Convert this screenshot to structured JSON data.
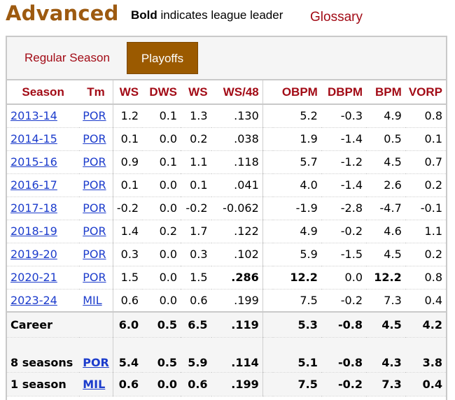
{
  "header": {
    "title": "Advanced",
    "note_bold": "Bold",
    "note_rest": " indicates league leader",
    "glossary": "Glossary"
  },
  "tabs": {
    "regular": "Regular Season",
    "playoffs": "Playoffs"
  },
  "columns": [
    "Season",
    "Tm",
    "WS",
    "DWS",
    "WS",
    "WS/48",
    "OBPM",
    "DBPM",
    "BPM",
    "VORP"
  ],
  "rows": [
    {
      "season": "2013-14",
      "tm": "POR",
      "c1": "1.2",
      "c2": "0.1",
      "c3": "1.3",
      "c4": ".130",
      "c5": "5.2",
      "c6": "-0.3",
      "c7": "4.9",
      "c8": "0.8"
    },
    {
      "season": "2014-15",
      "tm": "POR",
      "c1": "0.1",
      "c2": "0.0",
      "c3": "0.2",
      "c4": ".038",
      "c5": "1.9",
      "c6": "-1.4",
      "c7": "0.5",
      "c8": "0.1"
    },
    {
      "season": "2015-16",
      "tm": "POR",
      "c1": "0.9",
      "c2": "0.1",
      "c3": "1.1",
      "c4": ".118",
      "c5": "5.7",
      "c6": "-1.2",
      "c7": "4.5",
      "c8": "0.7"
    },
    {
      "season": "2016-17",
      "tm": "POR",
      "c1": "0.1",
      "c2": "0.0",
      "c3": "0.1",
      "c4": ".041",
      "c5": "4.0",
      "c6": "-1.4",
      "c7": "2.6",
      "c8": "0.2"
    },
    {
      "season": "2017-18",
      "tm": "POR",
      "c1": "-0.2",
      "c2": "0.0",
      "c3": "-0.2",
      "c4": "-0.062",
      "c5": "-1.9",
      "c6": "-2.8",
      "c7": "-4.7",
      "c8": "-0.1"
    },
    {
      "season": "2018-19",
      "tm": "POR",
      "c1": "1.4",
      "c2": "0.2",
      "c3": "1.7",
      "c4": ".122",
      "c5": "4.9",
      "c6": "-0.2",
      "c7": "4.6",
      "c8": "1.1"
    },
    {
      "season": "2019-20",
      "tm": "POR",
      "c1": "0.3",
      "c2": "0.0",
      "c3": "0.3",
      "c4": ".102",
      "c5": "5.9",
      "c6": "-1.5",
      "c7": "4.5",
      "c8": "0.2"
    },
    {
      "season": "2020-21",
      "tm": "POR",
      "c1": "1.5",
      "c2": "0.0",
      "c3": "1.5",
      "c4": ".286",
      "c5": "12.2",
      "c6": "0.0",
      "c7": "12.2",
      "c8": "0.8"
    },
    {
      "season": "2023-24",
      "tm": "MIL",
      "c1": "0.6",
      "c2": "0.0",
      "c3": "0.6",
      "c4": ".199",
      "c5": "7.5",
      "c6": "-0.2",
      "c7": "7.3",
      "c8": "0.4"
    }
  ],
  "totals": [
    {
      "season": "Career",
      "tm": "",
      "c1": "6.0",
      "c2": "0.5",
      "c3": "6.5",
      "c4": ".119",
      "c5": "5.3",
      "c6": "-0.8",
      "c7": "4.5",
      "c8": "4.2"
    },
    {
      "season": "8 seasons",
      "tm": "POR",
      "c1": "5.4",
      "c2": "0.5",
      "c3": "5.9",
      "c4": ".114",
      "c5": "5.1",
      "c6": "-0.8",
      "c7": "4.3",
      "c8": "3.8"
    },
    {
      "season": "1 season",
      "tm": "MIL",
      "c1": "0.6",
      "c2": "0.0",
      "c3": "0.6",
      "c4": ".199",
      "c5": "7.5",
      "c6": "-0.2",
      "c7": "7.3",
      "c8": "0.4"
    }
  ],
  "league_leader_cells": [
    "2020-21 WS/48",
    "2020-21 OBPM",
    "2020-21 BPM"
  ],
  "colors": {
    "title": "#9d5a10",
    "link": "#1c3ccc",
    "header_text": "#a20b16",
    "active_tab": "#9b5a00"
  }
}
